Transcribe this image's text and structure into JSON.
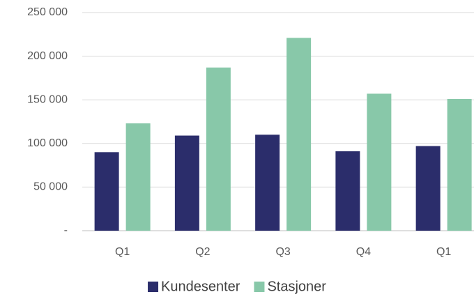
{
  "chart_data": {
    "type": "bar",
    "categories": [
      "Q1",
      "Q2",
      "Q3",
      "Q4",
      "Q1"
    ],
    "series": [
      {
        "name": "Kundesenter",
        "color": "#2b2d6b",
        "values": [
          90000,
          109000,
          110000,
          91000,
          97000
        ]
      },
      {
        "name": "Stasjoner",
        "color": "#88c8a9",
        "values": [
          123000,
          187000,
          221000,
          157000,
          151000
        ]
      }
    ],
    "ylim": [
      0,
      250000
    ],
    "yticks": [
      {
        "value": 0,
        "label": "-"
      },
      {
        "value": 50000,
        "label": "50 000"
      },
      {
        "value": 100000,
        "label": "100 000"
      },
      {
        "value": 150000,
        "label": "150 000"
      },
      {
        "value": 200000,
        "label": "200 000"
      },
      {
        "value": 250000,
        "label": "250 000"
      }
    ],
    "grid": true,
    "legend": "bottom"
  }
}
